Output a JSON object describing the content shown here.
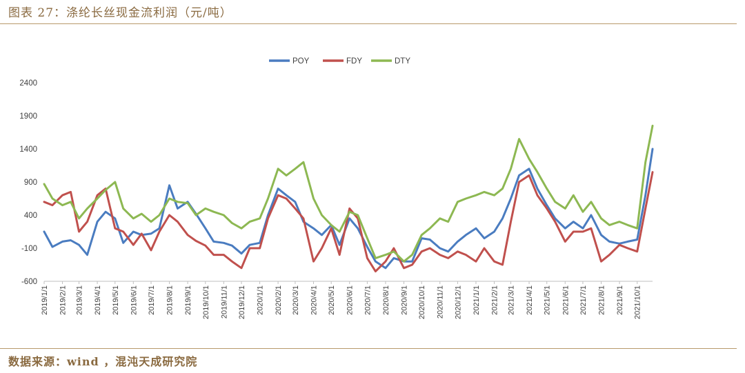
{
  "page": {
    "title": "图表 27：涤纶长丝现金流利润（元/吨）",
    "source": "数据来源：wind ，混沌天成研究院"
  },
  "colors": {
    "POY": "#4a7cc0",
    "FDY": "#c0504d",
    "DTY": "#8db852",
    "title": "#8a6a40",
    "rule": "#b8996a"
  },
  "chart_data": {
    "type": "line",
    "title": "",
    "xlabel": "",
    "ylabel": "",
    "ylim": [
      -600,
      2400
    ],
    "yticks": [
      -600,
      -100,
      400,
      900,
      1400,
      1900,
      2400
    ],
    "grid": false,
    "legend_position": "top-center",
    "x_tick_labels": [
      "2019/1/1",
      "2019/2/1",
      "2019/3/1",
      "2019/4/1",
      "2019/5/1",
      "2019/6/1",
      "2019/7/1",
      "2019/8/1",
      "2019/9/1",
      "2019/10/1",
      "2019/11/1",
      "2019/12/1",
      "2020/1/1",
      "2020/2/1",
      "2020/3/1",
      "2020/4/1",
      "2020/5/1",
      "2020/6/1",
      "2020/7/1",
      "2020/8/1",
      "2020/9/1",
      "2020/10/1",
      "2020/11/1",
      "2020/12/1",
      "2021/1/1",
      "2021/2/1",
      "2021/3/1",
      "2021/4/1",
      "2021/5/1",
      "2021/6/1",
      "2021/7/1",
      "2021/8/1",
      "2021/9/1",
      "2021/10/1"
    ],
    "x": [
      "2019/1/1",
      "2019/1/15",
      "2019/2/1",
      "2019/2/15",
      "2019/3/1",
      "2019/3/15",
      "2019/4/1",
      "2019/4/15",
      "2019/5/1",
      "2019/5/15",
      "2019/6/1",
      "2019/6/15",
      "2019/7/1",
      "2019/7/15",
      "2019/8/1",
      "2019/8/15",
      "2019/9/1",
      "2019/9/15",
      "2019/10/1",
      "2019/10/15",
      "2019/11/1",
      "2019/11/15",
      "2019/12/1",
      "2019/12/15",
      "2020/1/1",
      "2020/1/15",
      "2020/2/1",
      "2020/2/15",
      "2020/3/1",
      "2020/3/15",
      "2020/4/1",
      "2020/4/15",
      "2020/5/1",
      "2020/5/15",
      "2020/6/1",
      "2020/6/15",
      "2020/7/1",
      "2020/7/15",
      "2020/8/1",
      "2020/8/15",
      "2020/9/1",
      "2020/9/15",
      "2020/10/1",
      "2020/10/15",
      "2020/11/1",
      "2020/11/15",
      "2020/12/1",
      "2020/12/15",
      "2021/1/1",
      "2021/1/15",
      "2021/2/1",
      "2021/2/15",
      "2021/3/1",
      "2021/3/15",
      "2021/4/1",
      "2021/4/15",
      "2021/5/1",
      "2021/5/15",
      "2021/6/1",
      "2021/6/15",
      "2021/7/1",
      "2021/7/15",
      "2021/8/1",
      "2021/8/15",
      "2021/9/1",
      "2021/9/15",
      "2021/10/1",
      "2021/10/15",
      "2021/10/27"
    ],
    "series": [
      {
        "name": "POY",
        "values": [
          150,
          -80,
          0,
          20,
          -50,
          -200,
          300,
          450,
          350,
          -20,
          150,
          100,
          120,
          200,
          850,
          500,
          600,
          420,
          200,
          0,
          -20,
          -60,
          -180,
          -50,
          -20,
          400,
          800,
          700,
          600,
          300,
          200,
          100,
          250,
          -50,
          350,
          200,
          -80,
          -300,
          -400,
          -250,
          -300,
          -300,
          50,
          30,
          -100,
          -150,
          0,
          100,
          200,
          50,
          150,
          350,
          650,
          1000,
          1100,
          800,
          550,
          350,
          200,
          300,
          200,
          400,
          100,
          0,
          -30,
          0,
          30,
          700,
          1400
        ]
      },
      {
        "name": "FDY",
        "values": [
          600,
          550,
          700,
          750,
          150,
          300,
          700,
          800,
          200,
          150,
          -50,
          120,
          -130,
          150,
          400,
          300,
          100,
          10,
          -60,
          -200,
          -200,
          -300,
          -400,
          -100,
          -100,
          350,
          700,
          650,
          500,
          350,
          -300,
          -100,
          200,
          -200,
          500,
          350,
          -250,
          -450,
          -300,
          -100,
          -400,
          -350,
          -150,
          -100,
          -200,
          -250,
          -150,
          -200,
          -300,
          -100,
          -300,
          -350,
          300,
          900,
          1000,
          700,
          500,
          300,
          0,
          150,
          150,
          200,
          -300,
          -200,
          -50,
          -100,
          -150,
          500,
          1050
        ]
      },
      {
        "name": "DTY",
        "values": [
          870,
          650,
          550,
          600,
          350,
          500,
          650,
          780,
          900,
          500,
          350,
          420,
          300,
          400,
          650,
          600,
          580,
          400,
          500,
          450,
          400,
          280,
          200,
          300,
          350,
          650,
          1100,
          1000,
          1100,
          1200,
          650,
          400,
          250,
          150,
          450,
          400,
          50,
          -250,
          -200,
          -150,
          -300,
          -200,
          100,
          200,
          350,
          300,
          600,
          650,
          700,
          750,
          700,
          800,
          1100,
          1550,
          1250,
          1050,
          800,
          600,
          500,
          700,
          450,
          600,
          350,
          250,
          300,
          250,
          200,
          1200,
          1750
        ]
      }
    ]
  }
}
